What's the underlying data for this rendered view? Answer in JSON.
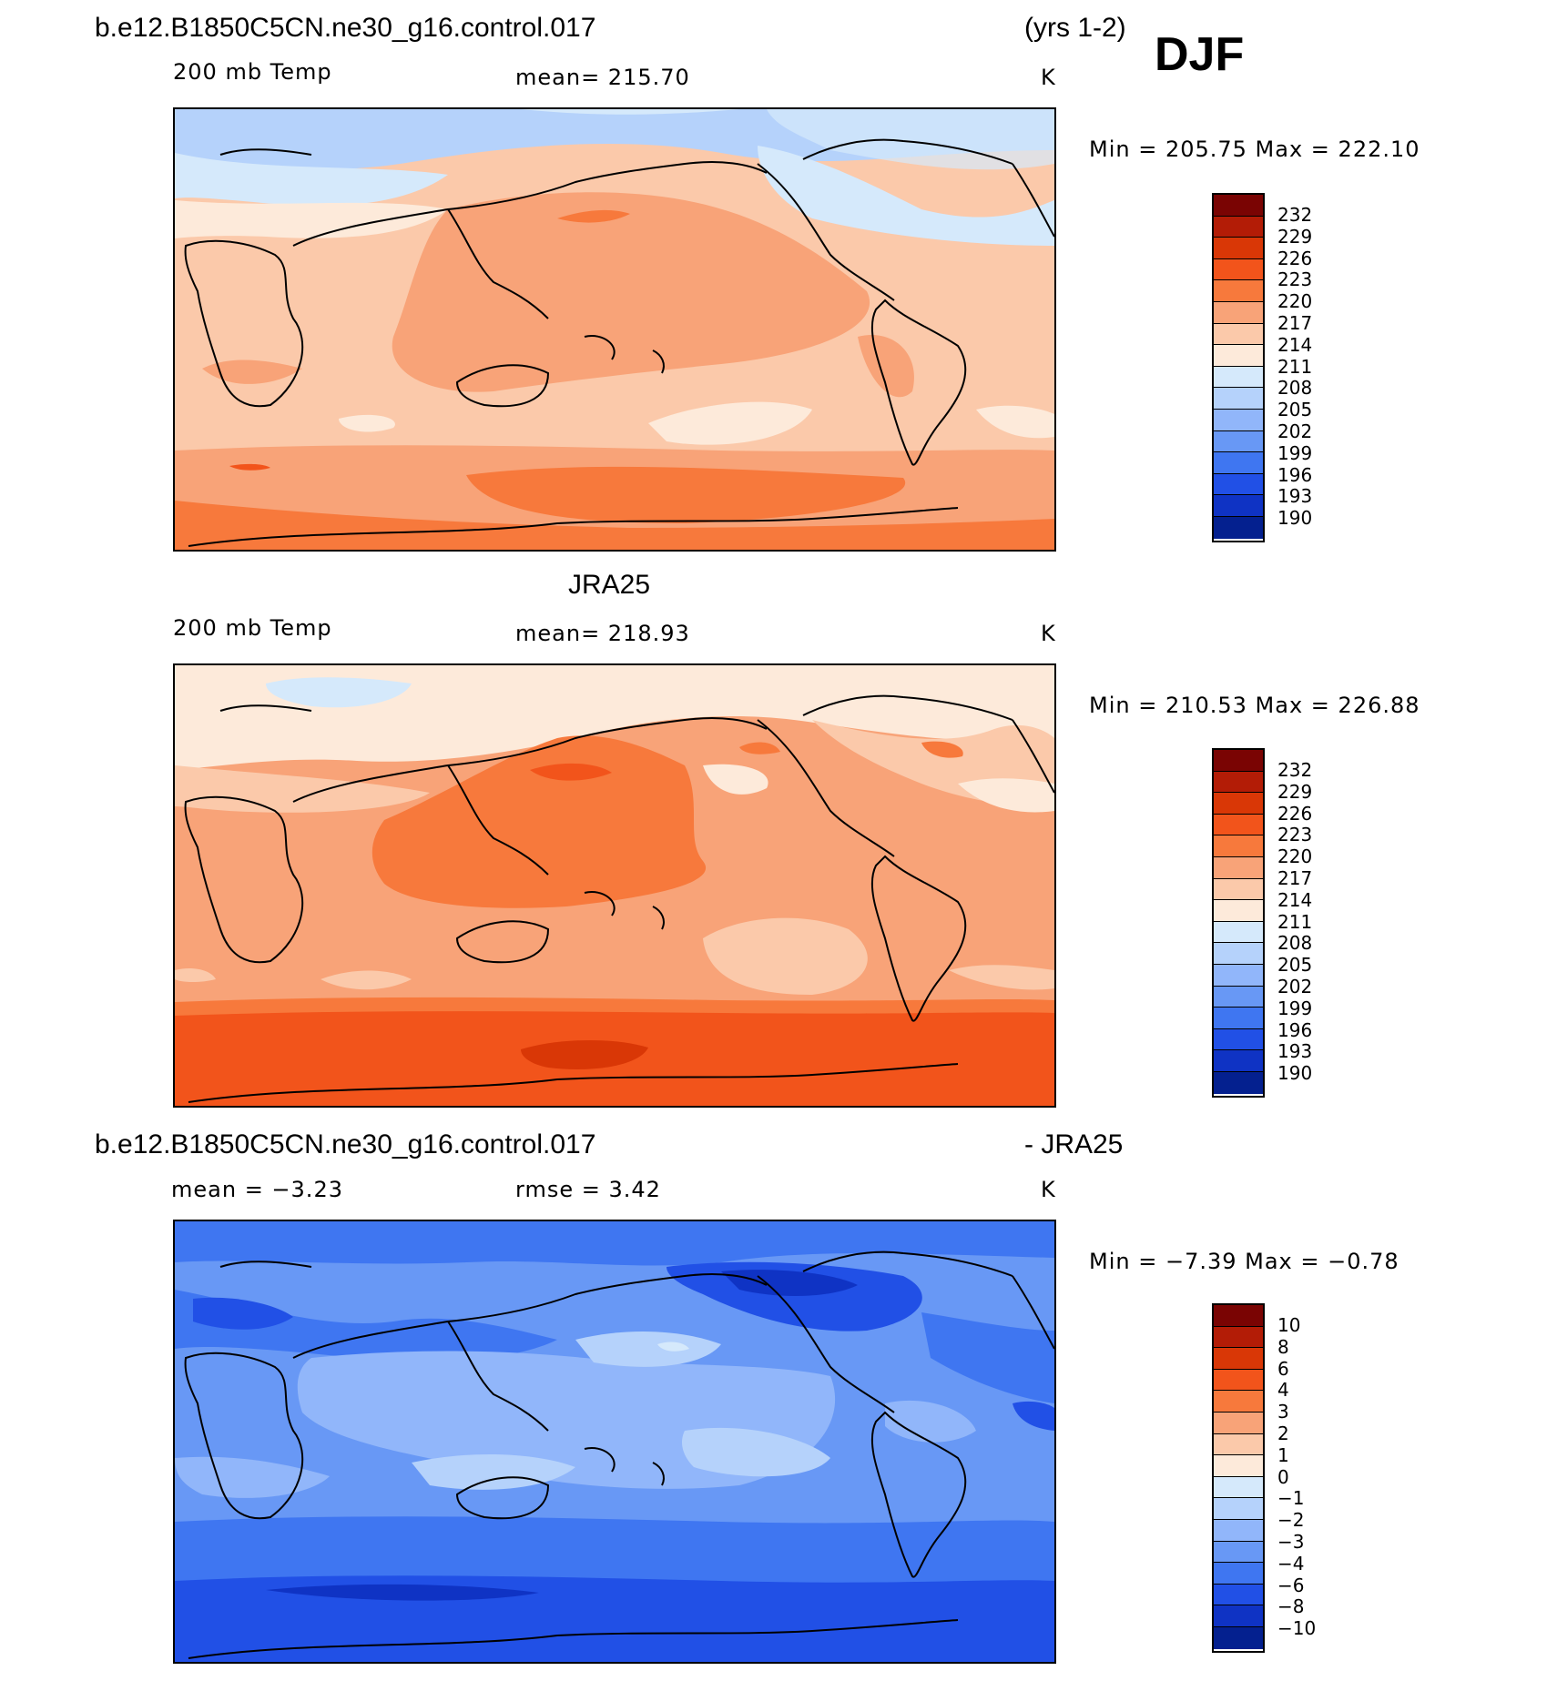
{
  "header": {
    "case_name": "b.e12.B1850C5CN.ne30_g16.control.017",
    "years": "(yrs 1-2)",
    "season": "DJF"
  },
  "panels": [
    {
      "id": "model",
      "title": "",
      "variable": "200 mb Temp",
      "stat_text": "mean=  215.70",
      "units": "K",
      "minmax": "Min  =  205.75  Max  =  222.10",
      "colorbar_labels": [
        "232",
        "229",
        "226",
        "223",
        "220",
        "217",
        "214",
        "211",
        "208",
        "205",
        "202",
        "199",
        "196",
        "193",
        "190"
      ]
    },
    {
      "id": "obs",
      "title": "JRA25",
      "variable": "200 mb Temp",
      "stat_text": "mean=  218.93",
      "units": "K",
      "minmax": "Min  =  210.53  Max  =  226.88",
      "colorbar_labels": [
        "232",
        "229",
        "226",
        "223",
        "220",
        "217",
        "214",
        "211",
        "208",
        "205",
        "202",
        "199",
        "196",
        "193",
        "190"
      ]
    },
    {
      "id": "diff",
      "title_left": "b.e12.B1850C5CN.ne30_g16.control.017",
      "title_right": "- JRA25",
      "variable": "mean  =    −3.23",
      "stat_text": "rmse  =     3.42",
      "units": "K",
      "minmax": "Min  =    −7.39  Max  =    −0.78",
      "colorbar_labels": [
        "10",
        "8",
        "6",
        "4",
        "3",
        "2",
        "1",
        "0",
        "−1",
        "−2",
        "−3",
        "−4",
        "−6",
        "−8",
        "−10"
      ]
    }
  ],
  "palette": [
    "#7a0403",
    "#b31c06",
    "#d93706",
    "#f2541b",
    "#f7793c",
    "#f8a378",
    "#fbc9aa",
    "#fdeada",
    "#d5e9fb",
    "#b5d2fb",
    "#91b6fa",
    "#6898f5",
    "#3f76f1",
    "#2150e6",
    "#0f33c4",
    "#04208f",
    "#02086b"
  ]
}
